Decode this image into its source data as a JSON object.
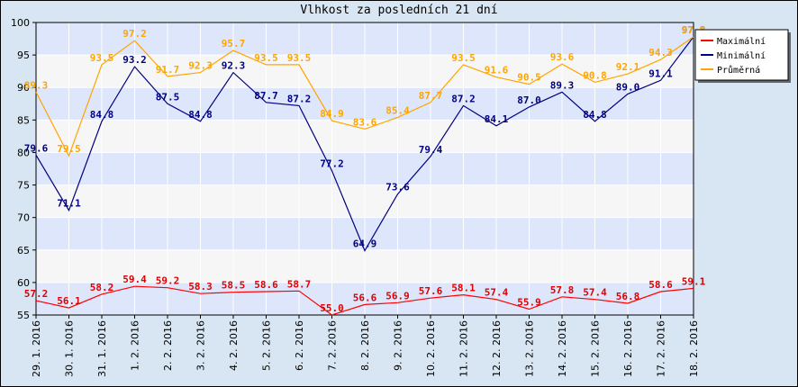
{
  "chart_data": {
    "type": "line",
    "title": "Vlhkost za posledních 21 dní",
    "xlabel": "",
    "ylabel": "",
    "ylim": [
      55,
      100
    ],
    "yticks": [
      55,
      60,
      65,
      70,
      75,
      80,
      85,
      90,
      95,
      100
    ],
    "grid": true,
    "legend_position": "top-right",
    "categories": [
      "29. 1. 2016",
      "30. 1. 2016",
      "31. 1. 2016",
      "1. 2. 2016",
      "2. 2. 2016",
      "3. 2. 2016",
      "4. 2. 2016",
      "5. 2. 2016",
      "6. 2. 2016",
      "7. 2. 2016",
      "8. 2. 2016",
      "9. 2. 2016",
      "10. 2. 2016",
      "11. 2. 2016",
      "12. 2. 2016",
      "13. 2. 2016",
      "14. 2. 2016",
      "15. 2. 2016",
      "16. 2. 2016",
      "17. 2. 2016",
      "18. 2. 2016"
    ],
    "series": [
      {
        "name": "Maximální",
        "color": "#ff0000",
        "label_color": "#e00000",
        "values": [
          57.2,
          56.1,
          58.2,
          59.4,
          59.2,
          58.3,
          58.5,
          58.6,
          58.7,
          55.0,
          56.6,
          56.9,
          57.6,
          58.1,
          57.4,
          55.9,
          57.8,
          57.4,
          56.8,
          58.6,
          59.1
        ]
      },
      {
        "name": "Minimální",
        "color": "#000080",
        "label_color": "#000080",
        "values": [
          79.6,
          71.1,
          84.8,
          93.2,
          87.5,
          84.8,
          92.3,
          87.7,
          87.2,
          77.2,
          64.9,
          73.6,
          79.4,
          87.2,
          84.1,
          87.0,
          89.3,
          84.8,
          89.0,
          91.1,
          97.8
        ]
      },
      {
        "name": "Průměrná",
        "color": "#ffa500",
        "label_color": "#ffa500",
        "values": [
          89.3,
          79.5,
          93.5,
          97.2,
          91.7,
          92.3,
          95.7,
          93.5,
          93.5,
          84.9,
          83.6,
          85.4,
          87.7,
          93.5,
          91.6,
          90.5,
          93.6,
          90.8,
          92.1,
          94.3,
          97.8
        ]
      }
    ]
  }
}
